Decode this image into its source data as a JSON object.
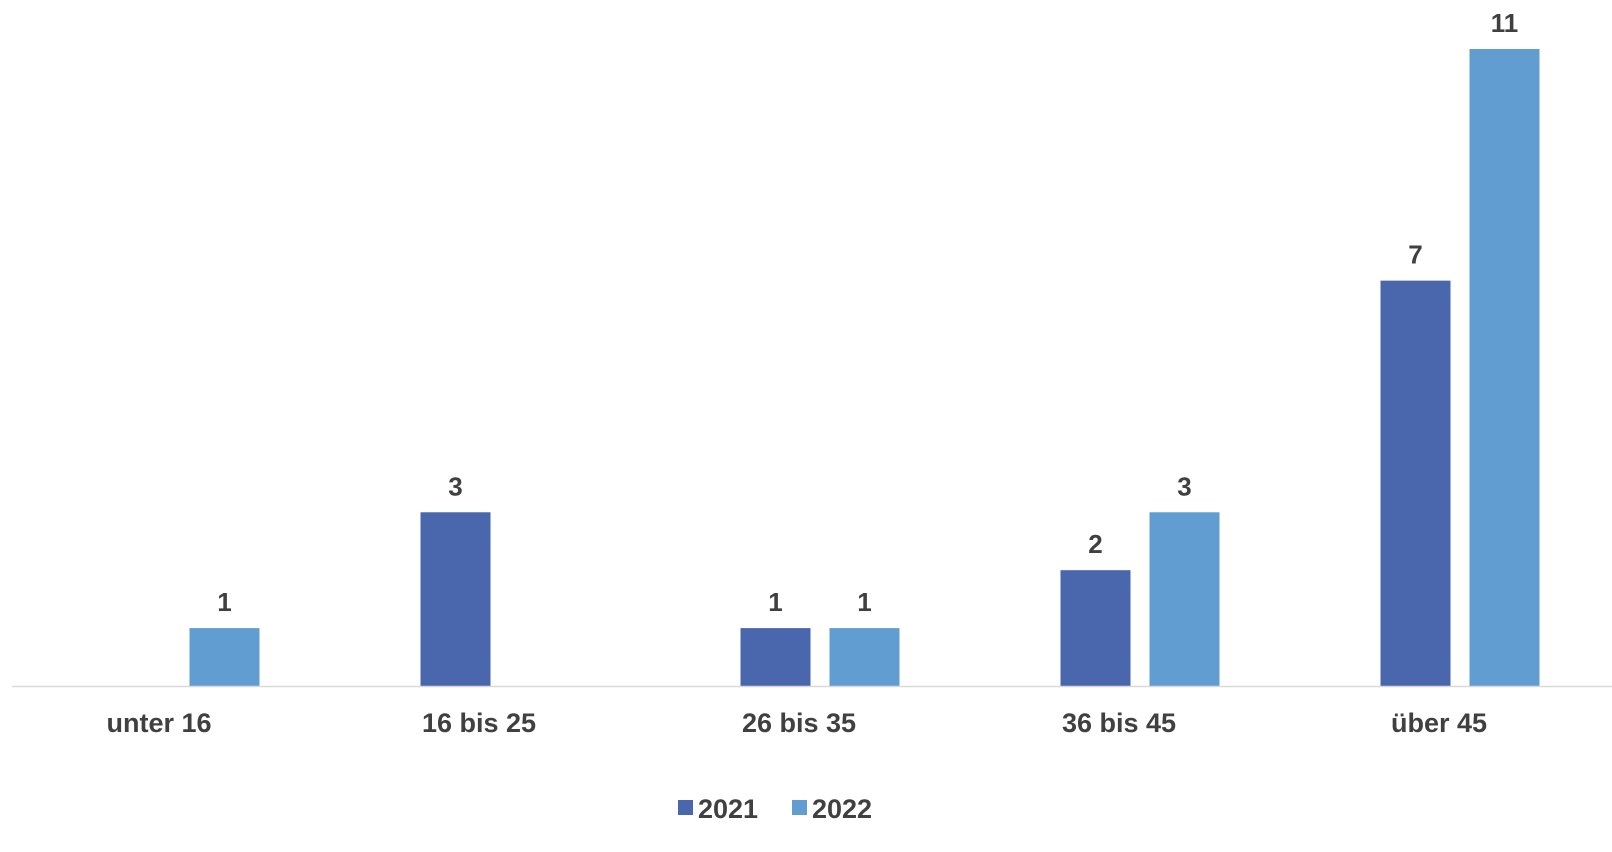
{
  "chart_data": {
    "type": "bar",
    "categories": [
      "unter 16",
      "16 bis 25",
      "26 bis 35",
      "36 bis 45",
      "über 45"
    ],
    "series": [
      {
        "name": "2021",
        "values": [
          null,
          3,
          1,
          2,
          7
        ],
        "color": "#4A66AC"
      },
      {
        "name": "2022",
        "values": [
          1,
          null,
          1,
          3,
          11
        ],
        "color": "#629DD1"
      }
    ],
    "ylim": [
      0,
      11
    ],
    "grid": false,
    "legend_position": "bottom",
    "data_labels": true,
    "axis_color": "#D9D9D9",
    "label_color": "#404040"
  }
}
